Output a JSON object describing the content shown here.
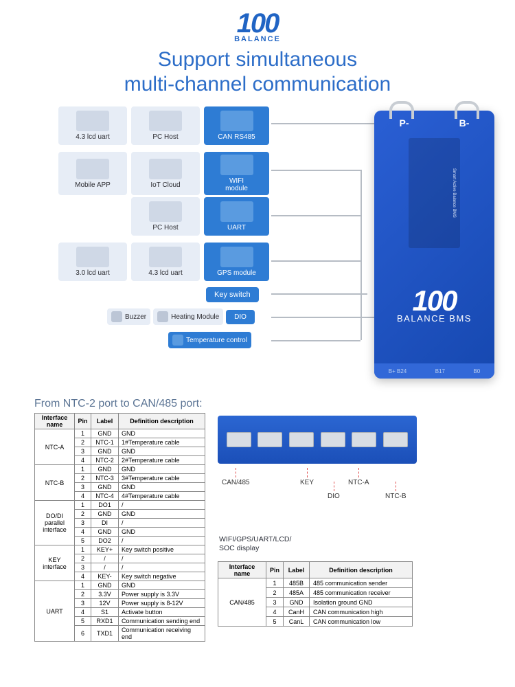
{
  "logo": {
    "text": "100",
    "sub": "BALANCE"
  },
  "headline": {
    "line1": "Support simultaneous",
    "line2": "multi-channel communication"
  },
  "rows": {
    "r1": {
      "a": "4.3 lcd uart",
      "b": "PC Host",
      "c": "CAN  RS485"
    },
    "r2": {
      "a": "Mobile APP",
      "b": "IoT Cloud",
      "c": "WIFI",
      "csub": "module"
    },
    "r3": {
      "b": "PC Host",
      "c": "UART"
    },
    "r4": {
      "a": "3.0 lcd uart",
      "b": "4.3 lcd uart",
      "c": "GPS module"
    },
    "key": "Key switch",
    "r5": {
      "a": "Buzzer",
      "b": "Heating Module",
      "c": "DIO"
    },
    "r6": {
      "c": "Temperature control"
    }
  },
  "device": {
    "p": "P-",
    "b": "B-",
    "logo": "100",
    "logosub": "BALANCE BMS",
    "sidelabels": "CAN/485  UART  KEY  DIO  NTC-A  NTC-B",
    "bottom": [
      "B+ B24",
      "B17",
      "B0"
    ],
    "sticker_title": "Smart Active Balance BMS"
  },
  "section_title": "From NTC-2 port to CAN/485 port:",
  "table1": {
    "headers": [
      "Interface\nname",
      "Pin",
      "Label",
      "Definition description"
    ],
    "groups": [
      {
        "name": "NTC-A",
        "rows": [
          [
            "1",
            "GND",
            "GND"
          ],
          [
            "2",
            "NTC-1",
            "1#Temperature cable"
          ],
          [
            "3",
            "GND",
            "GND"
          ],
          [
            "4",
            "NTC-2",
            "2#Temperature cable"
          ]
        ]
      },
      {
        "name": "NTC-B",
        "rows": [
          [
            "1",
            "GND",
            "GND"
          ],
          [
            "2",
            "NTC-3",
            "3#Temperature cable"
          ],
          [
            "3",
            "GND",
            "GND"
          ],
          [
            "4",
            "NTC-4",
            "4#Temperature cable"
          ]
        ]
      },
      {
        "name": "DO/DI\nparallel\ninterface",
        "rows": [
          [
            "1",
            "DO1",
            "/"
          ],
          [
            "2",
            "GND",
            "GND"
          ],
          [
            "3",
            "DI",
            "/"
          ],
          [
            "4",
            "GND",
            "GND"
          ],
          [
            "5",
            "DO2",
            "/"
          ]
        ]
      },
      {
        "name": "KEY\ninterface",
        "rows": [
          [
            "1",
            "KEY+",
            "Key switch positive"
          ],
          [
            "2",
            "/",
            "/"
          ],
          [
            "3",
            "/",
            "/"
          ],
          [
            "4",
            "KEY-",
            "Key switch negative"
          ]
        ]
      },
      {
        "name": "UART",
        "rows": [
          [
            "1",
            "GND",
            "GND"
          ],
          [
            "2",
            "3.3V",
            "Power supply is 3.3V"
          ],
          [
            "3",
            "12V",
            "Power supply is 8-12V"
          ],
          [
            "4",
            "S1",
            "Activate button"
          ],
          [
            "5",
            "RXD1",
            "Communication sending end"
          ],
          [
            "6",
            "TXD1",
            "Communication receiving end"
          ]
        ]
      }
    ]
  },
  "ports": {
    "labels": [
      "CAN/485",
      "KEY",
      "NTC-A",
      "DIO",
      "NTC-B"
    ],
    "caption": "WIFI/GPS/UART/LCD/\nSOC display"
  },
  "table2": {
    "headers": [
      "Interface name",
      "Pin",
      "Label",
      "Definition description"
    ],
    "name": "CAN/485",
    "rows": [
      [
        "1",
        "485B",
        "485 communication sender"
      ],
      [
        "2",
        "485A",
        "485 communication receiver"
      ],
      [
        "3",
        "GND",
        "Isolation ground GND"
      ],
      [
        "4",
        "CanH",
        "CAN  communication high"
      ],
      [
        "5",
        "CanL",
        "CAN communication low"
      ]
    ]
  },
  "colors": {
    "brand": "#2064c4",
    "module_bg": "#e7edf6",
    "module_blue": "#2e7cd4",
    "device_grad_a": "#2a5fd4",
    "device_grad_b": "#1648b0",
    "wire": "#b6bcc4",
    "dashed": "#e05050"
  }
}
